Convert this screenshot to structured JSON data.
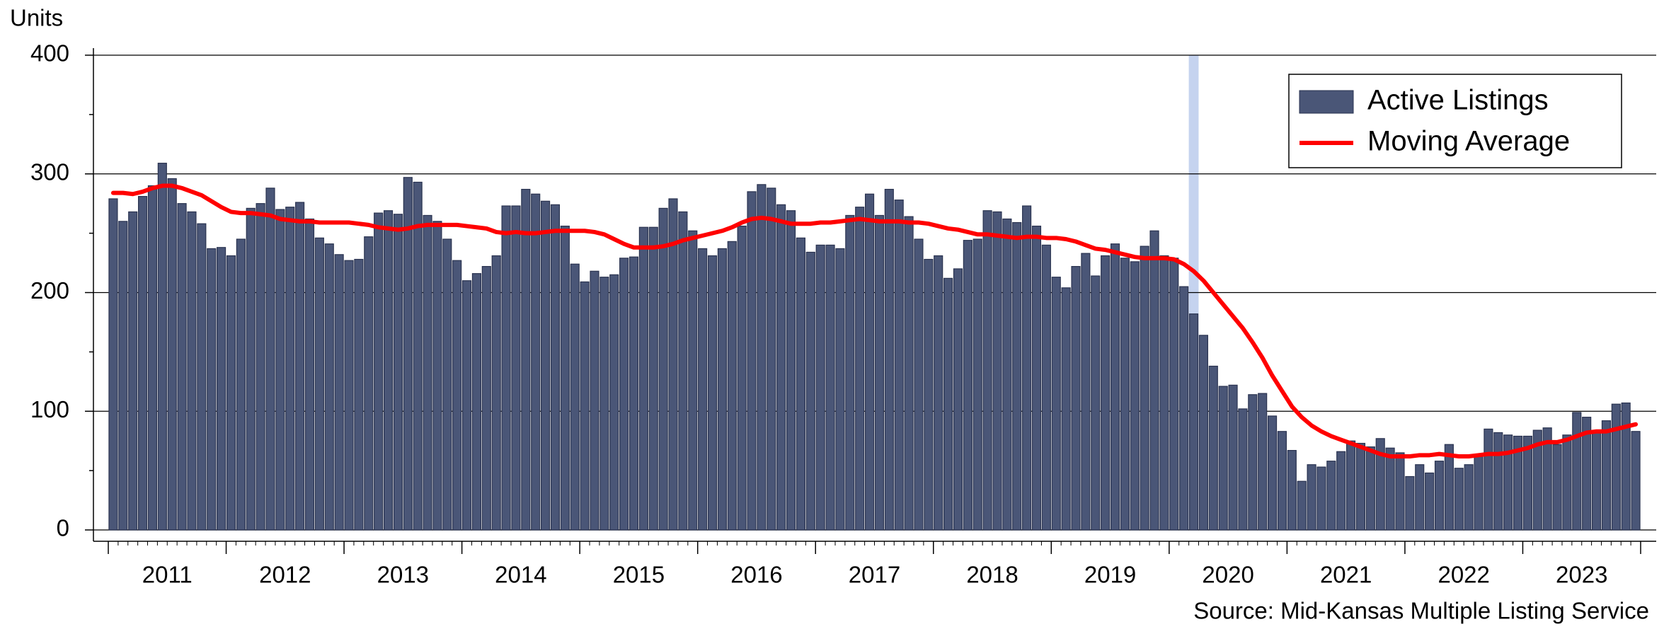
{
  "chart_data": {
    "type": "bar_line",
    "y_label": "Units",
    "source": "Source: Mid-Kansas Multiple Listing Service",
    "categories": [
      "2011",
      "2012",
      "2013",
      "2014",
      "2015",
      "2016",
      "2017",
      "2018",
      "2019",
      "2020",
      "2021",
      "2022",
      "2023"
    ],
    "ylim": [
      0,
      400
    ],
    "yticks": [
      0,
      100,
      200,
      300,
      400
    ],
    "yminorticks": [
      50,
      150,
      250,
      350
    ],
    "grid": true,
    "legend": "upper right",
    "highlight": {
      "year": "2020",
      "month": 3,
      "color": "#c5d3ef"
    },
    "series": [
      {
        "name": "Active Listings",
        "type": "bar",
        "color": "#4a5677",
        "values": [
          [
            279,
            260,
            268,
            281,
            290,
            309,
            296,
            275,
            268,
            258,
            237,
            238
          ],
          [
            231,
            245,
            271,
            275,
            288,
            270,
            272,
            276,
            262,
            246,
            241,
            232
          ],
          [
            227,
            228,
            247,
            267,
            269,
            266,
            297,
            293,
            265,
            260,
            245,
            227
          ],
          [
            210,
            216,
            222,
            231,
            273,
            273,
            287,
            283,
            277,
            274,
            256,
            224
          ],
          [
            209,
            218,
            213,
            215,
            229,
            230,
            255,
            255,
            271,
            279,
            268,
            252
          ],
          [
            237,
            231,
            237,
            243,
            256,
            285,
            291,
            288,
            274,
            269,
            246,
            234
          ],
          [
            240,
            240,
            237,
            265,
            272,
            283,
            265,
            287,
            278,
            264,
            245,
            228
          ],
          [
            231,
            212,
            220,
            244,
            245,
            269,
            268,
            262,
            259,
            273,
            256,
            240
          ],
          [
            213,
            204,
            222,
            233,
            214,
            231,
            241,
            229,
            226,
            239,
            252,
            231
          ],
          [
            229,
            205,
            182,
            164,
            138,
            121,
            122,
            102,
            114,
            115,
            96,
            83
          ],
          [
            67,
            41,
            55,
            53,
            58,
            66,
            75,
            73,
            70,
            77,
            69,
            65
          ],
          [
            45,
            55,
            48,
            58,
            72,
            52,
            55,
            62,
            85,
            82,
            80,
            79
          ],
          [
            79,
            84,
            86,
            72,
            80,
            99,
            95,
            83,
            92,
            106,
            107,
            83
          ]
        ]
      },
      {
        "name": "Moving Average",
        "type": "line",
        "color": "#ff0000",
        "values": [
          [
            284,
            284,
            283,
            285,
            288,
            290,
            290,
            288,
            285,
            282,
            277,
            272
          ],
          [
            268,
            267,
            267,
            266,
            265,
            262,
            261,
            260,
            260,
            259,
            259,
            259
          ],
          [
            259,
            258,
            257,
            255,
            254,
            253,
            254,
            256,
            257,
            257,
            257,
            257
          ],
          [
            256,
            255,
            254,
            251,
            250,
            251,
            250,
            250,
            251,
            252,
            252,
            252
          ],
          [
            252,
            251,
            249,
            245,
            241,
            238,
            238,
            238,
            239,
            241,
            244,
            246
          ],
          [
            248,
            250,
            252,
            255,
            259,
            262,
            263,
            262,
            260,
            258,
            258,
            258
          ],
          [
            259,
            259,
            260,
            261,
            262,
            261,
            260,
            260,
            260,
            259,
            259,
            258
          ],
          [
            256,
            254,
            253,
            251,
            249,
            249,
            248,
            247,
            246,
            247,
            247,
            246
          ],
          [
            246,
            245,
            243,
            240,
            237,
            236,
            234,
            232,
            230,
            229,
            229,
            229
          ],
          [
            228,
            224,
            218,
            210,
            200,
            190,
            180,
            170,
            158,
            145,
            130,
            117
          ],
          [
            104,
            95,
            88,
            83,
            79,
            76,
            73,
            70,
            67,
            64,
            62,
            62
          ],
          [
            62,
            63,
            63,
            64,
            63,
            62,
            62,
            63,
            64,
            64,
            65,
            67
          ],
          [
            69,
            72,
            74,
            74,
            76,
            79,
            82,
            83,
            83,
            85,
            87,
            89
          ]
        ]
      }
    ]
  }
}
